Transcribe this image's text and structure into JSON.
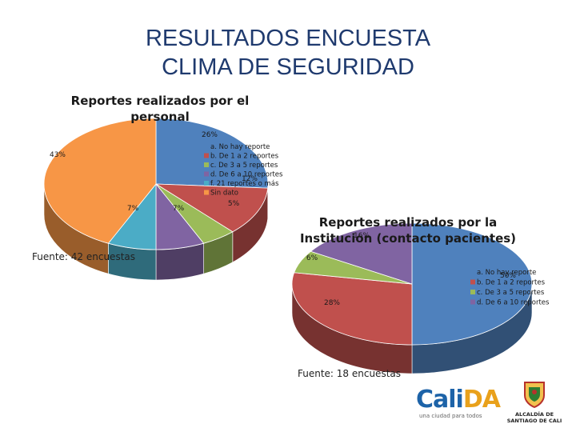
{
  "slide": {
    "title_line1": "RESULTADOS ENCUESTA",
    "title_line2": "CLIMA DE SEGURIDAD"
  },
  "chart_data": [
    {
      "type": "pie",
      "title": "Reportes realizados por el personal",
      "categories": [
        "a. No hay reporte",
        "b. De 1 a 2 reportes",
        "c. De 3 a 5 reportes",
        "d. De 6 a 10 reportes",
        "f. 21 reportes o más",
        "Sin dato"
      ],
      "values": [
        26,
        12,
        5,
        7,
        7,
        43
      ],
      "data_labels": [
        "26%",
        "12%",
        "5%",
        "7%",
        "7%",
        "43%"
      ],
      "colors": [
        "#4f81bd",
        "#c0504d",
        "#9bbb59",
        "#8064a2",
        "#4bacc6",
        "#f79646"
      ],
      "legend_position": "right",
      "source": "Fuente: 42 encuestas"
    },
    {
      "type": "pie",
      "title": "Reportes realizados por la Institucion (contacto pacientes)",
      "categories": [
        "a. No hay reporte",
        "b. De 1 a 2 reportes",
        "c. De 3 a 5 reportes",
        "d. De 6 a 10 reportes"
      ],
      "values": [
        50,
        28,
        6,
        16
      ],
      "data_labels": [
        "50%",
        "28%",
        "6%",
        "16%"
      ],
      "colors": [
        "#4f81bd",
        "#c0504d",
        "#9bbb59",
        "#8064a2"
      ],
      "legend_position": "right",
      "source": "Fuente: 18 encuestas"
    }
  ],
  "logos": {
    "calida": {
      "text_main": "Cali",
      "text_accent": "DA",
      "slogan": "una ciudad para todos"
    },
    "alcaldia": {
      "line1": "ALCALDÍA DE",
      "line2": "SANTIAGO DE CALI"
    }
  }
}
